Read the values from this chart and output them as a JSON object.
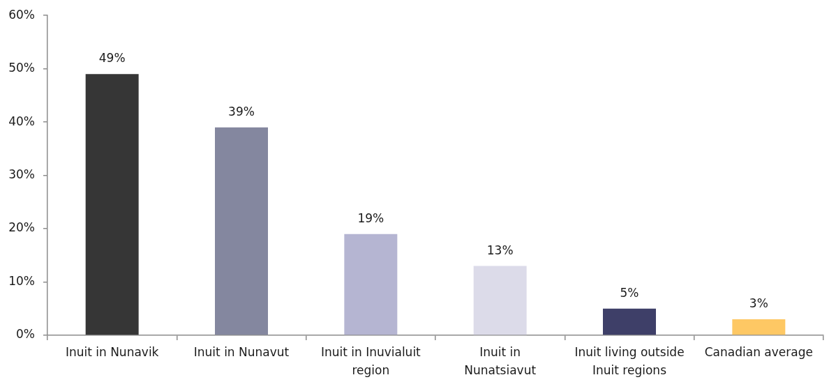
{
  "chart_data": {
    "type": "bar",
    "categories": [
      "Inuit in Nunavik",
      "Inuit in Nunavut",
      "Inuit in Inuvialuit region",
      "Inuit in Nunatsiavut",
      "Inuit living outside Inuit regions",
      "Canadian average"
    ],
    "values": [
      49,
      39,
      19,
      13,
      5,
      3
    ],
    "colors": [
      "#363636",
      "#84879f",
      "#b5b5d2",
      "#dcdbe9",
      "#3e3f68",
      "#fec864"
    ],
    "value_labels": [
      "49%",
      "39%",
      "19%",
      "13%",
      "5%",
      "3%"
    ],
    "ylim": [
      0,
      60
    ],
    "yticks": [
      {
        "value": 0,
        "label": "0%"
      },
      {
        "value": 10,
        "label": "10%"
      },
      {
        "value": 20,
        "label": "20%"
      },
      {
        "value": 30,
        "label": "30%"
      },
      {
        "value": 40,
        "label": "40%"
      },
      {
        "value": 50,
        "label": "50%"
      },
      {
        "value": 60,
        "label": "60%"
      }
    ]
  }
}
